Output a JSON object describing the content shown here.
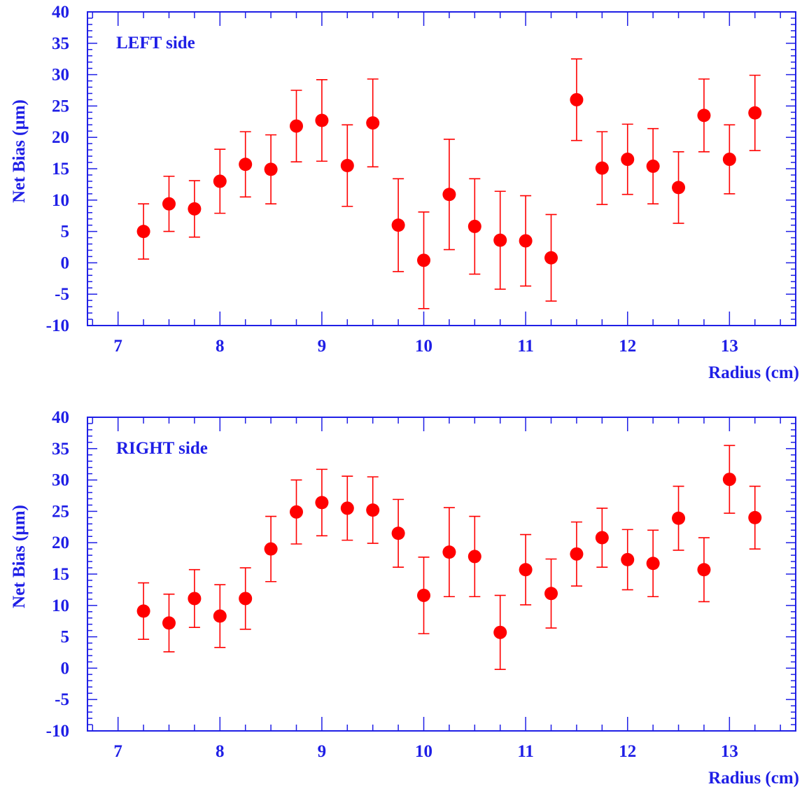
{
  "colors": {
    "axis": "#1f1fe6",
    "marker": "#ff0000"
  },
  "chart_data": [
    {
      "type": "scatter",
      "title": "LEFT side",
      "xlabel": "Radius (cm)",
      "ylabel": "Net Bias (µm)",
      "xlim": [
        6.7,
        13.65
      ],
      "ylim": [
        -10,
        40
      ],
      "xticks": [
        "7",
        "8",
        "9",
        "10",
        "11",
        "12",
        "13"
      ],
      "yticks": [
        "-10",
        "-5",
        "0",
        "5",
        "10",
        "15",
        "20",
        "25",
        "30",
        "35",
        "40"
      ],
      "grid": false,
      "x": [
        7.25,
        7.5,
        7.75,
        8.0,
        8.25,
        8.5,
        8.75,
        9.0,
        9.25,
        9.5,
        9.75,
        10.0,
        10.25,
        10.5,
        10.75,
        11.0,
        11.25,
        11.5,
        11.75,
        12.0,
        12.25,
        12.5,
        12.75,
        13.0,
        13.25
      ],
      "y": [
        5.0,
        9.4,
        8.6,
        13.0,
        15.7,
        14.9,
        21.8,
        22.7,
        15.5,
        22.3,
        6.0,
        0.4,
        10.9,
        5.8,
        3.6,
        3.5,
        0.8,
        26.0,
        15.1,
        16.5,
        15.4,
        12.0,
        23.5,
        16.5,
        23.9
      ],
      "yerr": [
        4.4,
        4.4,
        4.5,
        5.1,
        5.2,
        5.5,
        5.7,
        6.5,
        6.5,
        7.0,
        7.4,
        7.7,
        8.8,
        7.6,
        7.8,
        7.2,
        6.9,
        6.5,
        5.8,
        5.6,
        6.0,
        5.7,
        5.8,
        5.5,
        6.0
      ]
    },
    {
      "type": "scatter",
      "title": "RIGHT side",
      "xlabel": "Radius (cm)",
      "ylabel": "Net Bias (µm)",
      "xlim": [
        6.7,
        13.65
      ],
      "ylim": [
        -10,
        40
      ],
      "xticks": [
        "7",
        "8",
        "9",
        "10",
        "11",
        "12",
        "13"
      ],
      "yticks": [
        "-10",
        "-5",
        "0",
        "5",
        "10",
        "15",
        "20",
        "25",
        "30",
        "35",
        "40"
      ],
      "grid": false,
      "x": [
        7.25,
        7.5,
        7.75,
        8.0,
        8.25,
        8.5,
        8.75,
        9.0,
        9.25,
        9.5,
        9.75,
        10.0,
        10.25,
        10.5,
        10.75,
        11.0,
        11.25,
        11.5,
        11.75,
        12.0,
        12.25,
        12.5,
        12.75,
        13.0,
        13.25
      ],
      "y": [
        9.1,
        7.2,
        11.1,
        8.3,
        11.1,
        19.0,
        24.9,
        26.4,
        25.5,
        25.2,
        21.5,
        11.6,
        18.5,
        17.8,
        5.7,
        15.7,
        11.9,
        18.2,
        20.8,
        17.3,
        16.7,
        23.9,
        15.7,
        30.1,
        24.0
      ],
      "yerr": [
        4.5,
        4.6,
        4.6,
        5.0,
        4.9,
        5.2,
        5.1,
        5.3,
        5.1,
        5.3,
        5.4,
        6.1,
        7.1,
        6.4,
        5.9,
        5.6,
        5.5,
        5.1,
        4.7,
        4.8,
        5.3,
        5.1,
        5.1,
        5.4,
        5.0
      ]
    }
  ]
}
